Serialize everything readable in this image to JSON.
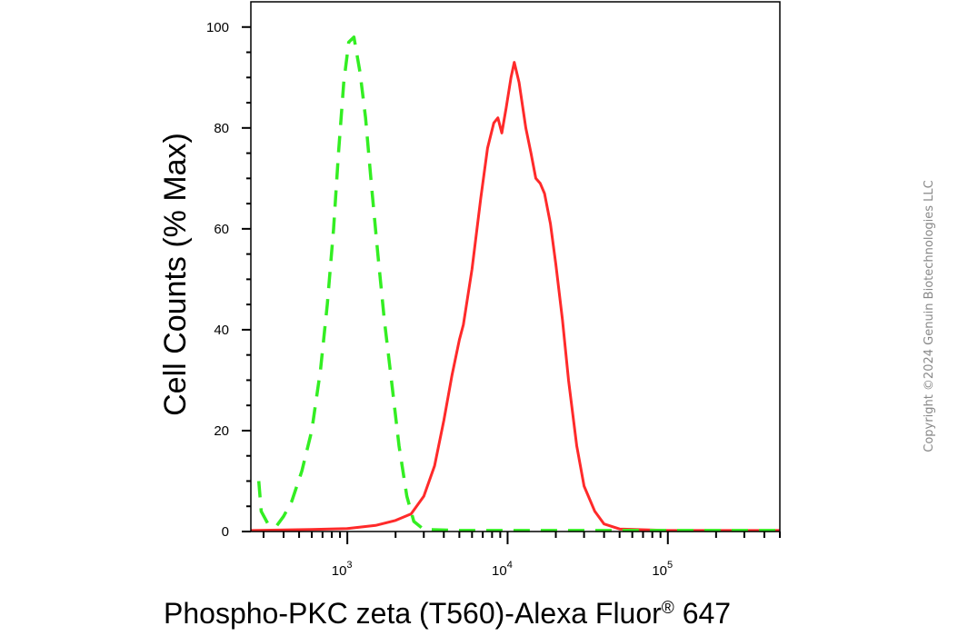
{
  "chart_data": {
    "type": "line",
    "xlabel": "Phospho-PKC zeta (T560)-Alexa Fluor",
    "xlabel_sup": "®",
    "xlabel_tail": " 647",
    "ylabel": "Cell Counts (% Max)",
    "x_scale": "log",
    "xlim": [
      250,
      500000
    ],
    "ylim": [
      0,
      105
    ],
    "y_ticks": [
      0,
      20,
      40,
      60,
      80,
      100
    ],
    "y_tick_labels": [
      "0",
      "20",
      "40",
      "60",
      "80",
      "100"
    ],
    "x_major_ticks": [
      {
        "value": 1000,
        "base": "10",
        "exp": "3"
      },
      {
        "value": 10000,
        "base": "10",
        "exp": "4"
      },
      {
        "value": 100000,
        "base": "10",
        "exp": "5"
      }
    ],
    "grid": false,
    "legend": "none",
    "series": [
      {
        "color": "#ff2a2a",
        "style": "solid",
        "points": [
          [
            250,
            0.2
          ],
          [
            600,
            0.4
          ],
          [
            1000,
            0.6
          ],
          [
            1500,
            1.2
          ],
          [
            2000,
            2.2
          ],
          [
            2500,
            3.5
          ],
          [
            3000,
            7
          ],
          [
            3500,
            13
          ],
          [
            4000,
            22
          ],
          [
            4500,
            31
          ],
          [
            5000,
            38
          ],
          [
            5300,
            41
          ],
          [
            6000,
            52
          ],
          [
            6800,
            66
          ],
          [
            7500,
            76
          ],
          [
            8200,
            81
          ],
          [
            8700,
            82
          ],
          [
            9200,
            79
          ],
          [
            9800,
            84
          ],
          [
            10500,
            90
          ],
          [
            11000,
            93
          ],
          [
            11800,
            89
          ],
          [
            13000,
            80
          ],
          [
            14000,
            75
          ],
          [
            15000,
            70
          ],
          [
            16000,
            69
          ],
          [
            17000,
            67
          ],
          [
            18500,
            61
          ],
          [
            20000,
            53
          ],
          [
            22000,
            42
          ],
          [
            24000,
            30
          ],
          [
            27000,
            17
          ],
          [
            30000,
            9
          ],
          [
            35000,
            4
          ],
          [
            40000,
            1.5
          ],
          [
            50000,
            0.5
          ],
          [
            100000,
            0.2
          ],
          [
            500000,
            0.2
          ]
        ]
      },
      {
        "color": "#33ee22",
        "style": "dashed",
        "points": [
          [
            280,
            10
          ],
          [
            290,
            4
          ],
          [
            320,
            1.5
          ],
          [
            360,
            1
          ],
          [
            400,
            3
          ],
          [
            450,
            6
          ],
          [
            520,
            12
          ],
          [
            600,
            20
          ],
          [
            680,
            32
          ],
          [
            750,
            45
          ],
          [
            820,
            60
          ],
          [
            880,
            75
          ],
          [
            950,
            89
          ],
          [
            1020,
            97
          ],
          [
            1100,
            98
          ],
          [
            1200,
            91
          ],
          [
            1300,
            82
          ],
          [
            1420,
            68
          ],
          [
            1550,
            55
          ],
          [
            1700,
            42
          ],
          [
            1900,
            29
          ],
          [
            2100,
            17
          ],
          [
            2350,
            7
          ],
          [
            2600,
            2
          ],
          [
            3000,
            0.4
          ],
          [
            5000,
            0.2
          ],
          [
            10000,
            0.2
          ],
          [
            100000,
            0.2
          ],
          [
            500000,
            0.2
          ]
        ]
      }
    ]
  },
  "watermark": "Copyright ©2024 Genuin Biotechnologies LLC",
  "colors": {
    "axis": "#000000",
    "watermark": "#888888"
  }
}
